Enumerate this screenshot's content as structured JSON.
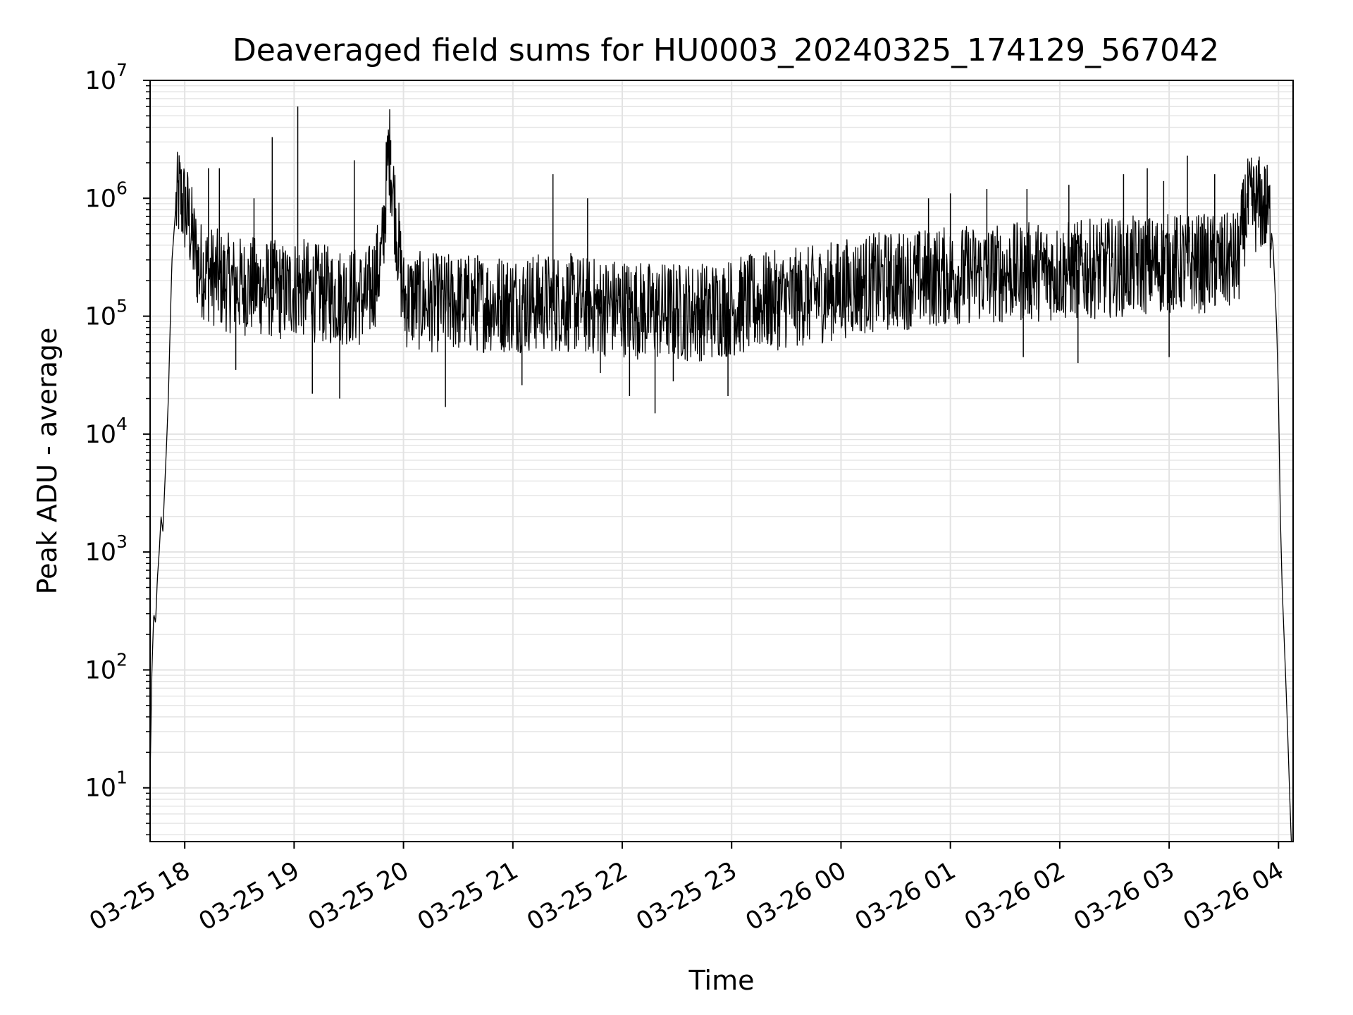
{
  "chart_data": {
    "type": "line",
    "title": "Deaveraged field sums for HU0003_20240325_174129_567042",
    "xlabel": "Time",
    "ylabel": "Peak ADU - average",
    "yscale": "log",
    "ylim": [
      3.5,
      10000000
    ],
    "xlim": [
      "2024-03-25 17:41",
      "2024-03-26 04:08"
    ],
    "grid": true,
    "x_ticks": [
      "03-25 18",
      "03-25 19",
      "03-25 20",
      "03-25 21",
      "03-25 22",
      "03-25 23",
      "03-26 00",
      "03-26 01",
      "03-26 02",
      "03-26 03",
      "03-26 04"
    ],
    "x_tick_times": [
      "2024-03-25 18:00",
      "2024-03-25 19:00",
      "2024-03-25 20:00",
      "2024-03-25 21:00",
      "2024-03-25 22:00",
      "2024-03-25 23:00",
      "2024-03-26 00:00",
      "2024-03-26 01:00",
      "2024-03-26 02:00",
      "2024-03-26 03:00",
      "2024-03-26 04:00"
    ],
    "y_ticks": [
      {
        "base": "10",
        "exp": "1",
        "value": 10
      },
      {
        "base": "10",
        "exp": "2",
        "value": 100
      },
      {
        "base": "10",
        "exp": "3",
        "value": 1000
      },
      {
        "base": "10",
        "exp": "4",
        "value": 10000
      },
      {
        "base": "10",
        "exp": "5",
        "value": 100000
      },
      {
        "base": "10",
        "exp": "6",
        "value": 1000000
      },
      {
        "base": "10",
        "exp": "7",
        "value": 10000000
      }
    ],
    "line_color": "#000000",
    "grid_color": "#e3e3e3",
    "series": [
      {
        "x": [
          "2024-03-25 17:41",
          "2024-03-25 17:42",
          "2024-03-25 17:43",
          "2024-03-25 17:44",
          "2024-03-25 17:45",
          "2024-03-25 17:46",
          "2024-03-25 17:47",
          "2024-03-25 17:48",
          "2024-03-25 17:49",
          "2024-03-25 17:50",
          "2024-03-25 17:51",
          "2024-03-25 17:52",
          "2024-03-25 17:53",
          "2024-03-25 17:55",
          "2024-03-25 17:57",
          "2024-03-25 17:59",
          "2024-03-25 18:02",
          "2024-03-25 18:05",
          "2024-03-25 18:08",
          "2024-03-25 18:10",
          "2024-03-25 18:15",
          "2024-03-25 18:20",
          "2024-03-25 18:30",
          "2024-03-25 18:40",
          "2024-03-25 18:48",
          "2024-03-25 18:55",
          "2024-03-25 19:02",
          "2024-03-25 19:10",
          "2024-03-25 19:20",
          "2024-03-25 19:30",
          "2024-03-25 19:40",
          "2024-03-25 19:48",
          "2024-03-25 19:52",
          "2024-03-25 20:00",
          "2024-03-25 20:15",
          "2024-03-25 20:30",
          "2024-03-25 20:45",
          "2024-03-25 21:00",
          "2024-03-25 21:15",
          "2024-03-25 21:30",
          "2024-03-25 21:45",
          "2024-03-25 22:00",
          "2024-03-25 22:15",
          "2024-03-25 22:30",
          "2024-03-25 22:45",
          "2024-03-25 23:00",
          "2024-03-25 23:15",
          "2024-03-25 23:30",
          "2024-03-25 23:45",
          "2024-03-26 00:00",
          "2024-03-26 00:15",
          "2024-03-26 00:30",
          "2024-03-26 00:45",
          "2024-03-26 01:00",
          "2024-03-26 01:15",
          "2024-03-26 01:30",
          "2024-03-26 01:45",
          "2024-03-26 02:00",
          "2024-03-26 02:15",
          "2024-03-26 02:30",
          "2024-03-26 02:45",
          "2024-03-26 03:00",
          "2024-03-26 03:15",
          "2024-03-26 03:30",
          "2024-03-26 03:38",
          "2024-03-26 03:42",
          "2024-03-26 03:48",
          "2024-03-26 03:52",
          "2024-03-26 03:55",
          "2024-03-26 03:57",
          "2024-03-26 03:59",
          "2024-03-26 04:00",
          "2024-03-26 04:01",
          "2024-03-26 04:02",
          "2024-03-26 04:03",
          "2024-03-26 04:04",
          "2024-03-26 04:05",
          "2024-03-26 04:06",
          "2024-03-26 04:07"
        ],
        "y": [
          12,
          100,
          300,
          250,
          600,
          1000,
          2000,
          1500,
          3500,
          8000,
          20000,
          80000,
          300000,
          800000,
          1100000,
          900000,
          700000,
          400000,
          250000,
          250000,
          220000,
          200000,
          180000,
          180000,
          170000,
          160000,
          180000,
          160000,
          150000,
          150000,
          140000,
          300000,
          2800000,
          140000,
          130000,
          130000,
          130000,
          130000,
          130000,
          130000,
          120000,
          120000,
          110000,
          110000,
          110000,
          120000,
          130000,
          140000,
          150000,
          170000,
          190000,
          200000,
          210000,
          220000,
          230000,
          230000,
          240000,
          240000,
          250000,
          260000,
          270000,
          280000,
          280000,
          280000,
          300000,
          800000,
          900000,
          850000,
          700000,
          400000,
          80000,
          20000,
          2000,
          500,
          200,
          80,
          30,
          10,
          3.5
        ]
      }
    ],
    "spikes": [
      {
        "x": "2024-03-25 17:58",
        "y": 1500000
      },
      {
        "x": "2024-03-25 18:13",
        "y": 1800000
      },
      {
        "x": "2024-03-25 18:19",
        "y": 1800000
      },
      {
        "x": "2024-03-25 18:38",
        "y": 1000000
      },
      {
        "x": "2024-03-25 18:48",
        "y": 3300000
      },
      {
        "x": "2024-03-25 19:02",
        "y": 6000000
      },
      {
        "x": "2024-03-25 19:33",
        "y": 2100000
      },
      {
        "x": "2024-03-25 19:53",
        "y": 3100000
      },
      {
        "x": "2024-03-25 21:22",
        "y": 1600000
      },
      {
        "x": "2024-03-25 21:41",
        "y": 1000000
      },
      {
        "x": "2024-03-26 00:48",
        "y": 1000000
      },
      {
        "x": "2024-03-26 01:00",
        "y": 1100000
      },
      {
        "x": "2024-03-26 01:20",
        "y": 1200000
      },
      {
        "x": "2024-03-26 01:42",
        "y": 1200000
      },
      {
        "x": "2024-03-26 02:05",
        "y": 1300000
      },
      {
        "x": "2024-03-26 02:35",
        "y": 1600000
      },
      {
        "x": "2024-03-26 02:48",
        "y": 1800000
      },
      {
        "x": "2024-03-26 02:57",
        "y": 1400000
      },
      {
        "x": "2024-03-26 03:10",
        "y": 2300000
      },
      {
        "x": "2024-03-26 03:25",
        "y": 1600000
      }
    ],
    "dips": [
      {
        "x": "2024-03-25 18:28",
        "y": 35000
      },
      {
        "x": "2024-03-25 19:10",
        "y": 22000
      },
      {
        "x": "2024-03-25 19:25",
        "y": 20000
      },
      {
        "x": "2024-03-25 20:23",
        "y": 17000
      },
      {
        "x": "2024-03-25 21:05",
        "y": 26000
      },
      {
        "x": "2024-03-25 21:48",
        "y": 33000
      },
      {
        "x": "2024-03-25 22:04",
        "y": 21000
      },
      {
        "x": "2024-03-25 22:18",
        "y": 15000
      },
      {
        "x": "2024-03-25 22:28",
        "y": 28000
      },
      {
        "x": "2024-03-25 22:58",
        "y": 21000
      },
      {
        "x": "2024-03-26 01:40",
        "y": 45000
      },
      {
        "x": "2024-03-26 02:10",
        "y": 40000
      },
      {
        "x": "2024-03-26 03:00",
        "y": 45000
      }
    ]
  }
}
